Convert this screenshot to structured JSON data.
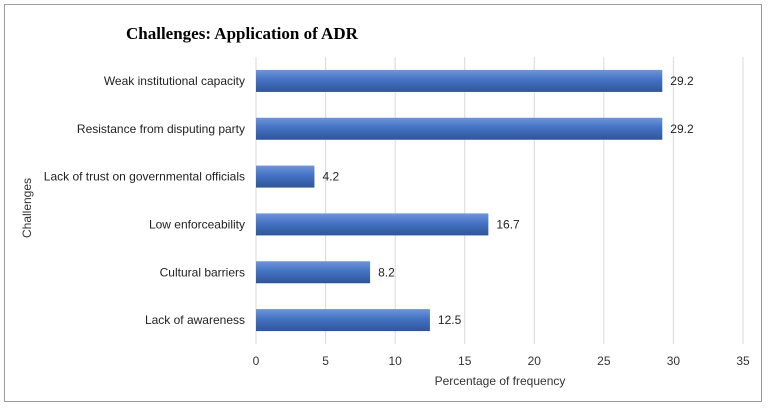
{
  "chart_data": {
    "type": "bar",
    "orientation": "horizontal",
    "title": "Challenges: Application of ADR",
    "xlabel": "Percentage of frequency",
    "ylabel": "Challenges",
    "categories": [
      "Weak institutional capacity",
      "Resistance from disputing party",
      "Lack of trust on governmental officials",
      "Low enforceability",
      "Cultural barriers",
      "Lack of awareness"
    ],
    "values": [
      29.2,
      29.2,
      4.2,
      16.7,
      8.2,
      12.5
    ],
    "value_labels": [
      "29.2",
      "29.2",
      "4.2",
      "16.7",
      "8.2",
      "12.5"
    ],
    "xlim": [
      0,
      35
    ],
    "xticks": [
      0,
      5,
      10,
      15,
      20,
      25,
      30,
      35
    ],
    "grid": true,
    "legend": "none",
    "bar_color": "#4472c4"
  }
}
